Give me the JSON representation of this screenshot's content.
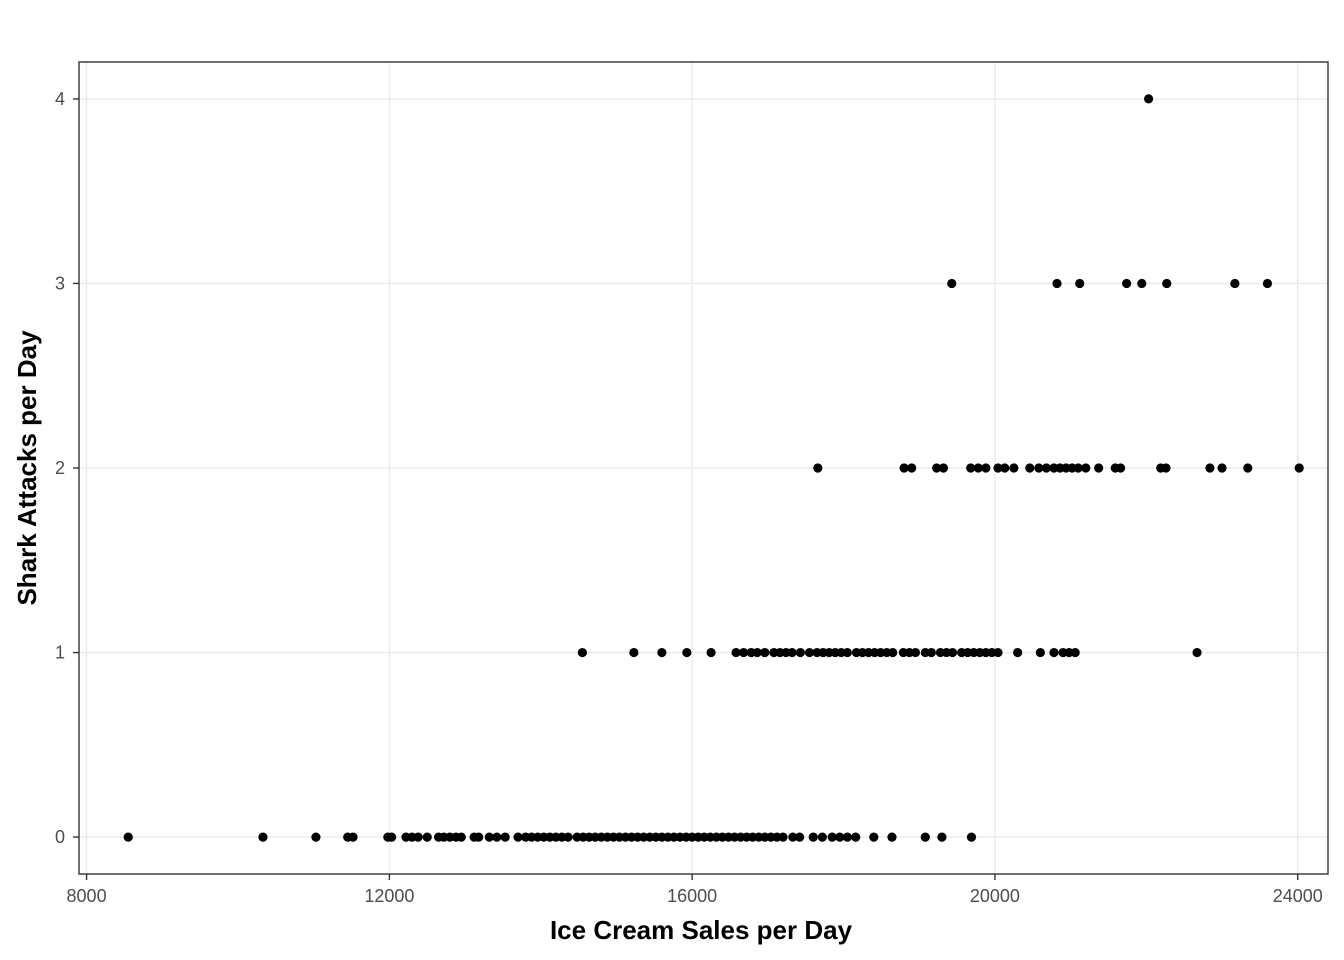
{
  "chart_data": {
    "type": "scatter",
    "title": "",
    "xlabel": "Ice Cream Sales per Day",
    "ylabel": "Shark Attacks per Day",
    "xlim": [
      7900,
      24400
    ],
    "ylim": [
      -0.2,
      4.2
    ],
    "x_ticks": [
      8000,
      12000,
      16000,
      20000,
      24000
    ],
    "x_tick_labels": [
      "8000",
      "12000",
      "16000",
      "20000",
      "24000"
    ],
    "y_ticks": [
      0,
      1,
      2,
      3,
      4
    ],
    "y_tick_labels": [
      "0",
      "1",
      "2",
      "3",
      "4"
    ],
    "grid": true,
    "point_color": "#000000",
    "series": [
      {
        "points": [
          {
            "x": 8550,
            "y": 0
          },
          {
            "x": 10330,
            "y": 0
          },
          {
            "x": 11030,
            "y": 0
          },
          {
            "x": 11450,
            "y": 0
          },
          {
            "x": 11520,
            "y": 0
          },
          {
            "x": 11980,
            "y": 0
          },
          {
            "x": 12030,
            "y": 0
          },
          {
            "x": 12220,
            "y": 0
          },
          {
            "x": 12300,
            "y": 0
          },
          {
            "x": 12380,
            "y": 0
          },
          {
            "x": 12500,
            "y": 0
          },
          {
            "x": 12650,
            "y": 0
          },
          {
            "x": 12720,
            "y": 0
          },
          {
            "x": 12800,
            "y": 0
          },
          {
            "x": 12880,
            "y": 0
          },
          {
            "x": 12950,
            "y": 0
          },
          {
            "x": 13120,
            "y": 0
          },
          {
            "x": 13180,
            "y": 0
          },
          {
            "x": 13320,
            "y": 0
          },
          {
            "x": 13420,
            "y": 0
          },
          {
            "x": 13530,
            "y": 0
          },
          {
            "x": 13700,
            "y": 0
          },
          {
            "x": 13800,
            "y": 0
          },
          {
            "x": 13880,
            "y": 0
          },
          {
            "x": 13960,
            "y": 0
          },
          {
            "x": 14040,
            "y": 0
          },
          {
            "x": 14120,
            "y": 0
          },
          {
            "x": 14200,
            "y": 0
          },
          {
            "x": 14280,
            "y": 0
          },
          {
            "x": 14360,
            "y": 0
          },
          {
            "x": 14480,
            "y": 0
          },
          {
            "x": 14560,
            "y": 0
          },
          {
            "x": 14640,
            "y": 0
          },
          {
            "x": 14720,
            "y": 0
          },
          {
            "x": 14800,
            "y": 0
          },
          {
            "x": 14880,
            "y": 0
          },
          {
            "x": 14960,
            "y": 0
          },
          {
            "x": 15040,
            "y": 0
          },
          {
            "x": 15120,
            "y": 0
          },
          {
            "x": 15200,
            "y": 0
          },
          {
            "x": 15280,
            "y": 0
          },
          {
            "x": 15360,
            "y": 0
          },
          {
            "x": 15440,
            "y": 0
          },
          {
            "x": 15520,
            "y": 0
          },
          {
            "x": 15600,
            "y": 0
          },
          {
            "x": 15680,
            "y": 0
          },
          {
            "x": 15760,
            "y": 0
          },
          {
            "x": 15840,
            "y": 0
          },
          {
            "x": 15920,
            "y": 0
          },
          {
            "x": 16000,
            "y": 0
          },
          {
            "x": 16080,
            "y": 0
          },
          {
            "x": 16160,
            "y": 0
          },
          {
            "x": 16240,
            "y": 0
          },
          {
            "x": 16320,
            "y": 0
          },
          {
            "x": 16400,
            "y": 0
          },
          {
            "x": 16480,
            "y": 0
          },
          {
            "x": 16560,
            "y": 0
          },
          {
            "x": 16640,
            "y": 0
          },
          {
            "x": 16720,
            "y": 0
          },
          {
            "x": 16800,
            "y": 0
          },
          {
            "x": 16880,
            "y": 0
          },
          {
            "x": 16960,
            "y": 0
          },
          {
            "x": 17040,
            "y": 0
          },
          {
            "x": 17120,
            "y": 0
          },
          {
            "x": 17200,
            "y": 0
          },
          {
            "x": 17330,
            "y": 0
          },
          {
            "x": 17420,
            "y": 0
          },
          {
            "x": 17600,
            "y": 0
          },
          {
            "x": 17720,
            "y": 0
          },
          {
            "x": 17850,
            "y": 0
          },
          {
            "x": 17950,
            "y": 0
          },
          {
            "x": 18050,
            "y": 0
          },
          {
            "x": 18160,
            "y": 0
          },
          {
            "x": 18400,
            "y": 0
          },
          {
            "x": 18640,
            "y": 0
          },
          {
            "x": 19080,
            "y": 0
          },
          {
            "x": 19300,
            "y": 0
          },
          {
            "x": 19690,
            "y": 0
          },
          {
            "x": 14550,
            "y": 1
          },
          {
            "x": 15230,
            "y": 1
          },
          {
            "x": 15600,
            "y": 1
          },
          {
            "x": 15930,
            "y": 1
          },
          {
            "x": 16250,
            "y": 1
          },
          {
            "x": 16580,
            "y": 1
          },
          {
            "x": 16680,
            "y": 1
          },
          {
            "x": 16780,
            "y": 1
          },
          {
            "x": 16860,
            "y": 1
          },
          {
            "x": 16960,
            "y": 1
          },
          {
            "x": 17080,
            "y": 1
          },
          {
            "x": 17160,
            "y": 1
          },
          {
            "x": 17240,
            "y": 1
          },
          {
            "x": 17320,
            "y": 1
          },
          {
            "x": 17430,
            "y": 1
          },
          {
            "x": 17550,
            "y": 1
          },
          {
            "x": 17650,
            "y": 1
          },
          {
            "x": 17730,
            "y": 1
          },
          {
            "x": 17810,
            "y": 1
          },
          {
            "x": 17890,
            "y": 1
          },
          {
            "x": 17970,
            "y": 1
          },
          {
            "x": 18050,
            "y": 1
          },
          {
            "x": 18170,
            "y": 1
          },
          {
            "x": 18250,
            "y": 1
          },
          {
            "x": 18330,
            "y": 1
          },
          {
            "x": 18410,
            "y": 1
          },
          {
            "x": 18490,
            "y": 1
          },
          {
            "x": 18570,
            "y": 1
          },
          {
            "x": 18650,
            "y": 1
          },
          {
            "x": 18790,
            "y": 1
          },
          {
            "x": 18870,
            "y": 1
          },
          {
            "x": 18950,
            "y": 1
          },
          {
            "x": 19080,
            "y": 1
          },
          {
            "x": 19160,
            "y": 1
          },
          {
            "x": 19280,
            "y": 1
          },
          {
            "x": 19360,
            "y": 1
          },
          {
            "x": 19440,
            "y": 1
          },
          {
            "x": 19560,
            "y": 1
          },
          {
            "x": 19640,
            "y": 1
          },
          {
            "x": 19720,
            "y": 1
          },
          {
            "x": 19800,
            "y": 1
          },
          {
            "x": 19880,
            "y": 1
          },
          {
            "x": 19960,
            "y": 1
          },
          {
            "x": 20040,
            "y": 1
          },
          {
            "x": 20300,
            "y": 1
          },
          {
            "x": 20600,
            "y": 1
          },
          {
            "x": 20780,
            "y": 1
          },
          {
            "x": 20900,
            "y": 1
          },
          {
            "x": 20980,
            "y": 1
          },
          {
            "x": 21060,
            "y": 1
          },
          {
            "x": 22670,
            "y": 1
          },
          {
            "x": 17660,
            "y": 2
          },
          {
            "x": 18800,
            "y": 2
          },
          {
            "x": 18900,
            "y": 2
          },
          {
            "x": 19230,
            "y": 2
          },
          {
            "x": 19320,
            "y": 2
          },
          {
            "x": 19680,
            "y": 2
          },
          {
            "x": 19780,
            "y": 2
          },
          {
            "x": 19880,
            "y": 2
          },
          {
            "x": 20040,
            "y": 2
          },
          {
            "x": 20130,
            "y": 2
          },
          {
            "x": 20250,
            "y": 2
          },
          {
            "x": 20460,
            "y": 2
          },
          {
            "x": 20580,
            "y": 2
          },
          {
            "x": 20680,
            "y": 2
          },
          {
            "x": 20780,
            "y": 2
          },
          {
            "x": 20860,
            "y": 2
          },
          {
            "x": 20940,
            "y": 2
          },
          {
            "x": 21020,
            "y": 2
          },
          {
            "x": 21100,
            "y": 2
          },
          {
            "x": 21200,
            "y": 2
          },
          {
            "x": 21370,
            "y": 2
          },
          {
            "x": 21590,
            "y": 2
          },
          {
            "x": 21660,
            "y": 2
          },
          {
            "x": 22190,
            "y": 2
          },
          {
            "x": 22260,
            "y": 2
          },
          {
            "x": 22840,
            "y": 2
          },
          {
            "x": 23000,
            "y": 2
          },
          {
            "x": 23340,
            "y": 2
          },
          {
            "x": 24020,
            "y": 2
          },
          {
            "x": 19430,
            "y": 3
          },
          {
            "x": 20820,
            "y": 3
          },
          {
            "x": 21120,
            "y": 3
          },
          {
            "x": 21740,
            "y": 3
          },
          {
            "x": 21940,
            "y": 3
          },
          {
            "x": 22270,
            "y": 3
          },
          {
            "x": 23170,
            "y": 3
          },
          {
            "x": 23600,
            "y": 3
          },
          {
            "x": 22030,
            "y": 4
          }
        ]
      }
    ]
  }
}
